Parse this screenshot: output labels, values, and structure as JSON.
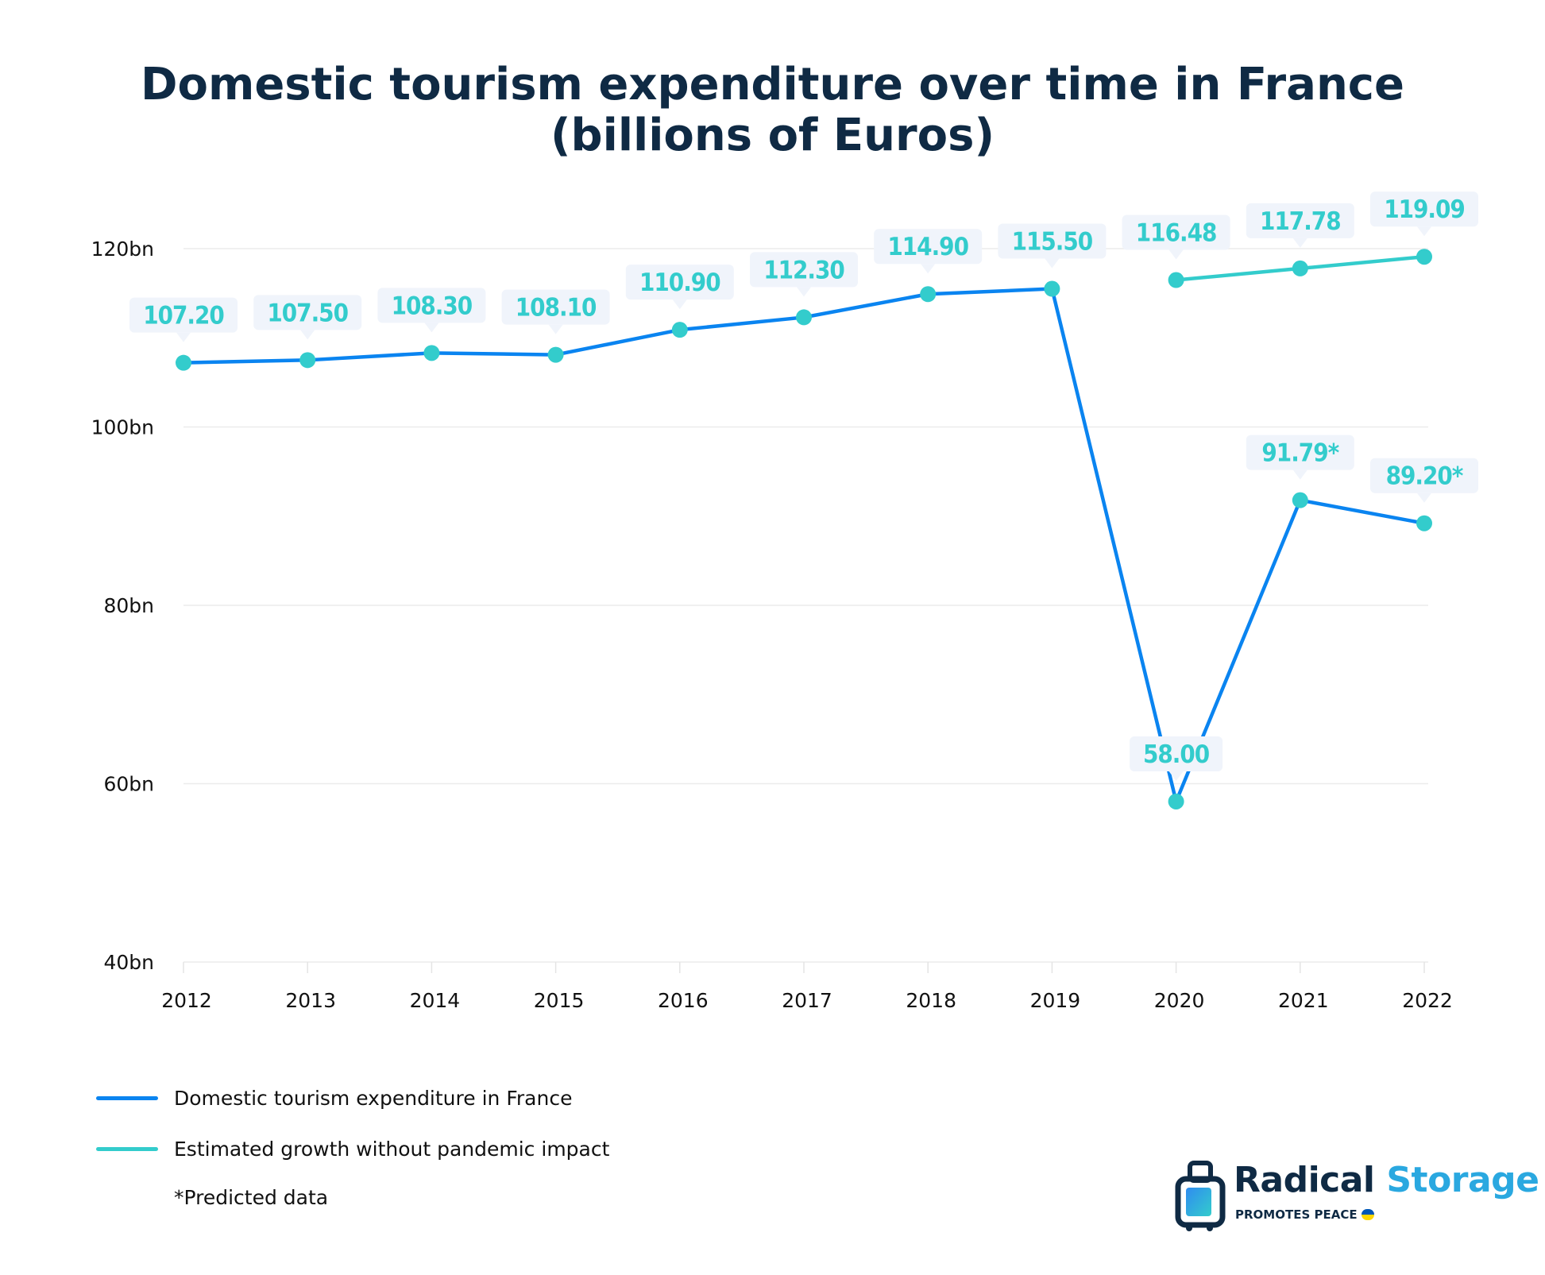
{
  "chart_data": {
    "type": "line",
    "title": "Domestic tourism expenditure over time in France (billions of Euros)",
    "title_lines": [
      "Domestic tourism expenditure over time in France",
      "(billions of Euros)"
    ],
    "xlabel": "",
    "ylabel": "",
    "categories": [
      "2012",
      "2013",
      "2014",
      "2015",
      "2016",
      "2017",
      "2018",
      "2019",
      "2020",
      "2021",
      "2022"
    ],
    "ylim": [
      40,
      120
    ],
    "yticks": [
      40,
      60,
      80,
      100,
      120
    ],
    "ytick_labels": [
      "40bn",
      "60bn",
      "80bn",
      "100bn",
      "120bn"
    ],
    "grid": true,
    "legend_position": "bottom-left",
    "series": [
      {
        "name": "Domestic tourism expenditure in France",
        "color": "#0a84f0",
        "x": [
          "2012",
          "2013",
          "2014",
          "2015",
          "2016",
          "2017",
          "2018",
          "2019",
          "2020",
          "2021",
          "2022"
        ],
        "values": [
          107.2,
          107.5,
          108.3,
          108.1,
          110.9,
          112.3,
          114.9,
          115.5,
          58.0,
          91.79,
          89.2
        ],
        "labels": [
          "107.20",
          "107.50",
          "108.30",
          "108.10",
          "110.90",
          "112.30",
          "114.90",
          "115.50",
          "58.00",
          "91.79*",
          "89.20*"
        ]
      },
      {
        "name": "Estimated growth without pandemic impact",
        "color": "#33cccc",
        "x": [
          "2020",
          "2021",
          "2022"
        ],
        "values": [
          116.48,
          117.78,
          119.09
        ],
        "labels": [
          "116.48",
          "117.78",
          "119.09"
        ]
      }
    ],
    "marker_color": "#33cccc",
    "label_color": "#33cccc",
    "label_bg": "#f0f4fb",
    "note": "*Predicted data"
  },
  "logo": {
    "brand_dark": "Radical",
    "brand_light": "Storage",
    "tagline": "PROMOTES PEACE"
  }
}
